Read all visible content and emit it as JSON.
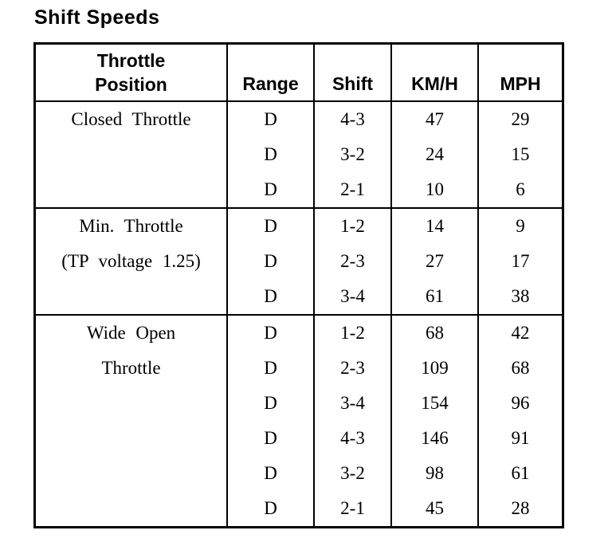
{
  "title": "Shift Speeds",
  "colors": {
    "text": "#000000",
    "background": "#ffffff",
    "border": "#000000"
  },
  "table": {
    "headers": {
      "throttle_line1": "Throttle",
      "throttle_line2": "Position",
      "range": "Range",
      "shift": "Shift",
      "kmh": "KM/H",
      "mph": "MPH"
    },
    "groups": [
      {
        "label_lines": [
          "Closed Throttle",
          ""
        ],
        "rows": [
          {
            "range": "D",
            "shift": "4-3",
            "kmh": "47",
            "mph": "29"
          },
          {
            "range": "D",
            "shift": "3-2",
            "kmh": "24",
            "mph": "15"
          },
          {
            "range": "D",
            "shift": "2-1",
            "kmh": "10",
            "mph": "6"
          }
        ]
      },
      {
        "label_lines": [
          "Min. Throttle",
          "(TP voltage 1.25)"
        ],
        "rows": [
          {
            "range": "D",
            "shift": "1-2",
            "kmh": "14",
            "mph": "9"
          },
          {
            "range": "D",
            "shift": "2-3",
            "kmh": "27",
            "mph": "17"
          },
          {
            "range": "D",
            "shift": "3-4",
            "kmh": "61",
            "mph": "38"
          }
        ]
      },
      {
        "label_lines": [
          "Wide Open",
          "Throttle"
        ],
        "rows": [
          {
            "range": "D",
            "shift": "1-2",
            "kmh": "68",
            "mph": "42"
          },
          {
            "range": "D",
            "shift": "2-3",
            "kmh": "109",
            "mph": "68"
          },
          {
            "range": "D",
            "shift": "3-4",
            "kmh": "154",
            "mph": "96"
          },
          {
            "range": "D",
            "shift": "4-3",
            "kmh": "146",
            "mph": "91"
          },
          {
            "range": "D",
            "shift": "3-2",
            "kmh": "98",
            "mph": "61"
          },
          {
            "range": "D",
            "shift": "2-1",
            "kmh": "45",
            "mph": "28"
          }
        ]
      }
    ]
  }
}
